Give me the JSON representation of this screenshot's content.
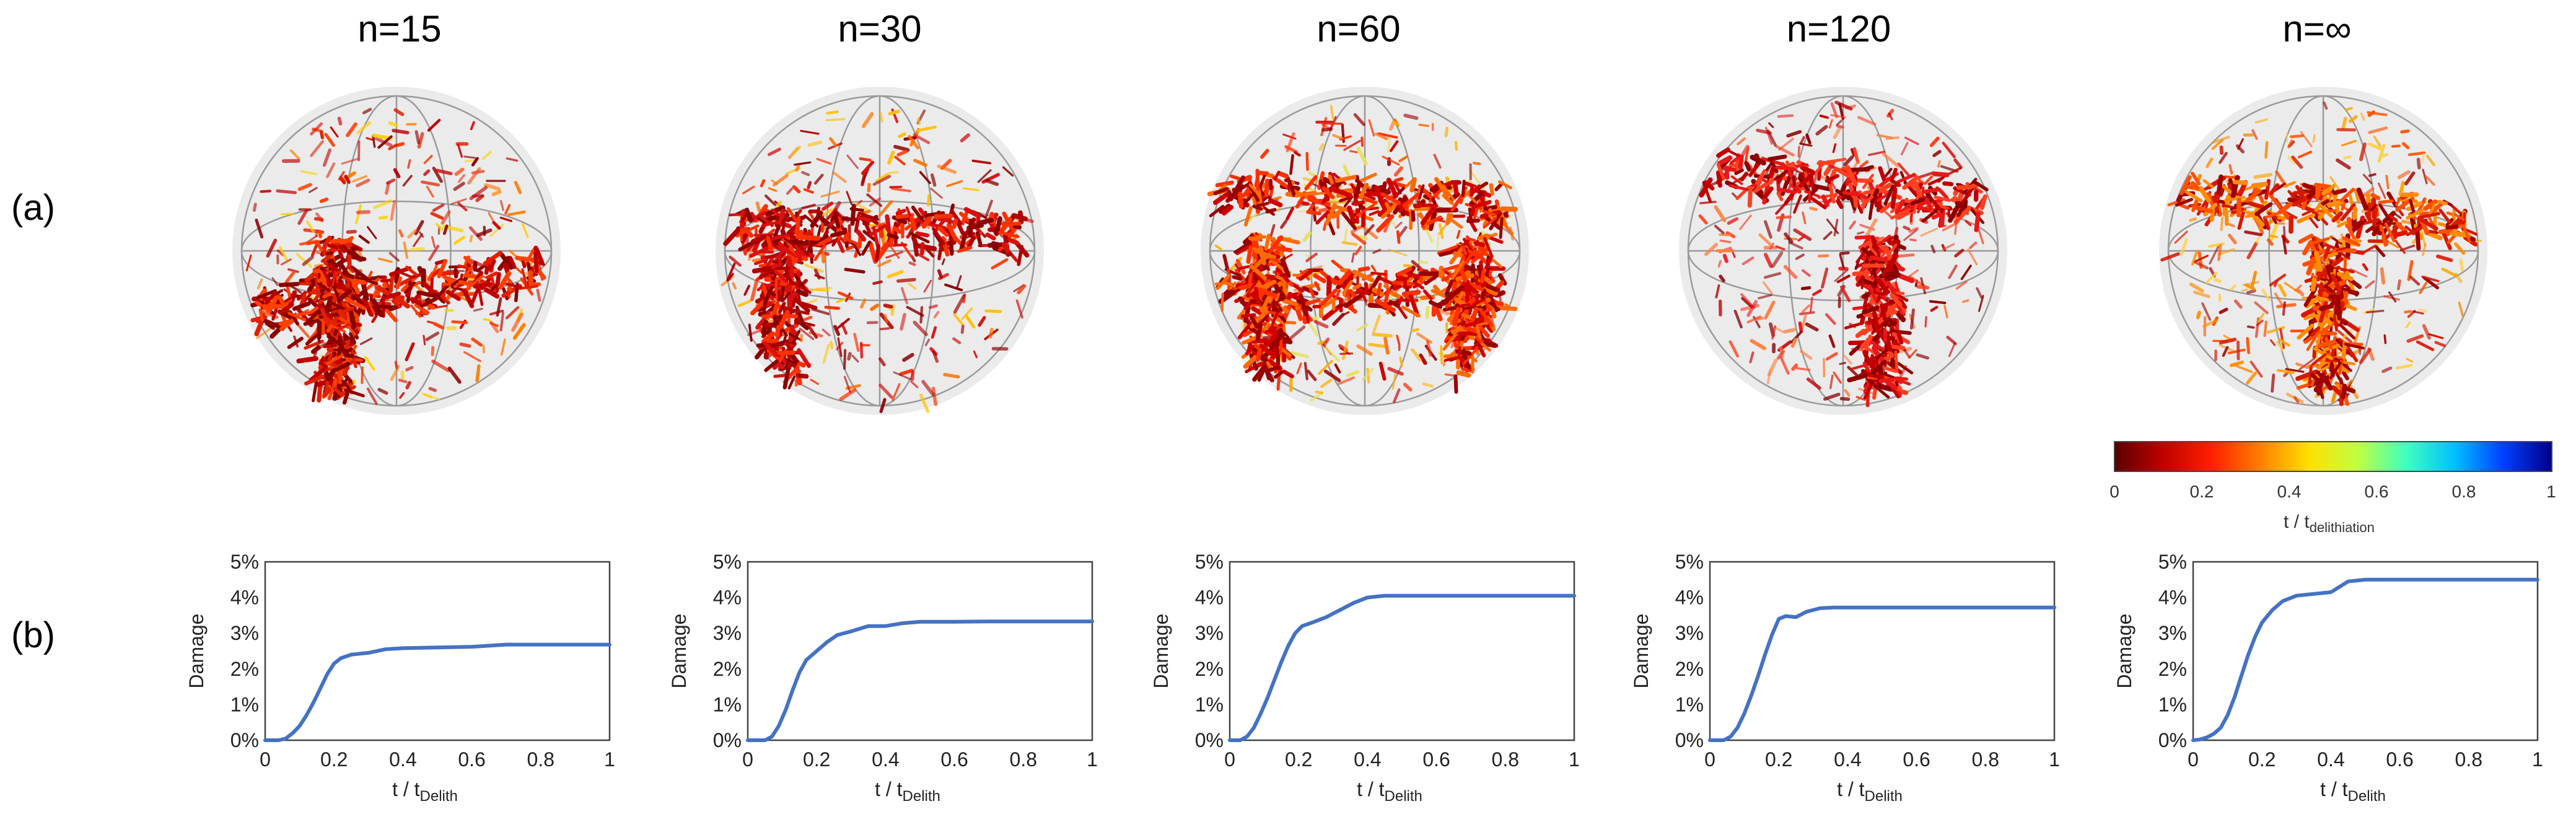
{
  "panel_labels": {
    "a": "(a)",
    "b": "(b)"
  },
  "columns": [
    {
      "title": "n=15"
    },
    {
      "title": "n=30"
    },
    {
      "title": "n=60"
    },
    {
      "title": "n=120"
    },
    {
      "title": "n=∞"
    }
  ],
  "colorbar": {
    "ticks": [
      "0",
      "0.2",
      "0.4",
      "0.6",
      "0.8",
      "1"
    ],
    "label_main": "t / t",
    "label_sub": "delithiation",
    "colors": [
      "#5a0000",
      "#c00000",
      "#ff2000",
      "#ff8000",
      "#ffe000",
      "#c0ff40",
      "#40ffc0",
      "#00c0ff",
      "#0040ff",
      "#00008a"
    ]
  },
  "line_color": "#4472c4",
  "chart_data": [
    {
      "type": "line",
      "title": "n=15",
      "xlabel_main": "t / t",
      "xlabel_sub": "Delith",
      "ylabel": "Damage",
      "xlim": [
        0,
        1
      ],
      "ylim": [
        0,
        5
      ],
      "xticks": [
        "0",
        "0.2",
        "0.4",
        "0.6",
        "0.8",
        "1"
      ],
      "yticks": [
        "0%",
        "1%",
        "2%",
        "3%",
        "4%",
        "5%"
      ],
      "x": [
        0,
        0.04,
        0.06,
        0.08,
        0.1,
        0.12,
        0.14,
        0.16,
        0.18,
        0.2,
        0.22,
        0.25,
        0.3,
        0.35,
        0.4,
        0.5,
        0.6,
        0.7,
        0.8,
        0.9,
        1.0
      ],
      "y": [
        0,
        0,
        0.05,
        0.2,
        0.4,
        0.7,
        1.05,
        1.45,
        1.85,
        2.15,
        2.3,
        2.4,
        2.45,
        2.55,
        2.58,
        2.6,
        2.62,
        2.68,
        2.68,
        2.68,
        2.68
      ]
    },
    {
      "type": "line",
      "title": "n=30",
      "xlabel_main": "t / t",
      "xlabel_sub": "Delith",
      "ylabel": "Damage",
      "xlim": [
        0,
        1
      ],
      "ylim": [
        0,
        5
      ],
      "xticks": [
        "0",
        "0.2",
        "0.4",
        "0.6",
        "0.8",
        "1"
      ],
      "yticks": [
        "0%",
        "1%",
        "2%",
        "3%",
        "4%",
        "5%"
      ],
      "x": [
        0,
        0.05,
        0.07,
        0.09,
        0.11,
        0.13,
        0.15,
        0.17,
        0.2,
        0.23,
        0.26,
        0.3,
        0.35,
        0.4,
        0.45,
        0.5,
        0.6,
        0.7,
        0.8,
        0.9,
        1.0
      ],
      "y": [
        0,
        0,
        0.1,
        0.4,
        0.85,
        1.4,
        1.9,
        2.25,
        2.5,
        2.75,
        2.95,
        3.05,
        3.2,
        3.2,
        3.28,
        3.32,
        3.32,
        3.33,
        3.33,
        3.33,
        3.33
      ]
    },
    {
      "type": "line",
      "title": "n=60",
      "xlabel_main": "t / t",
      "xlabel_sub": "Delith",
      "ylabel": "Damage",
      "xlim": [
        0,
        1
      ],
      "ylim": [
        0,
        5
      ],
      "xticks": [
        "0",
        "0.2",
        "0.4",
        "0.6",
        "0.8",
        "1"
      ],
      "yticks": [
        "0%",
        "1%",
        "2%",
        "3%",
        "4%",
        "5%"
      ],
      "x": [
        0,
        0.03,
        0.05,
        0.07,
        0.09,
        0.11,
        0.13,
        0.15,
        0.17,
        0.19,
        0.21,
        0.24,
        0.28,
        0.32,
        0.36,
        0.4,
        0.45,
        0.5,
        0.6,
        0.8,
        1.0
      ],
      "y": [
        0,
        0,
        0.1,
        0.35,
        0.75,
        1.2,
        1.7,
        2.2,
        2.65,
        3.0,
        3.2,
        3.3,
        3.45,
        3.65,
        3.85,
        4.0,
        4.05,
        4.05,
        4.05,
        4.05,
        4.05
      ]
    },
    {
      "type": "line",
      "title": "n=120",
      "xlabel_main": "t / t",
      "xlabel_sub": "Delith",
      "ylabel": "Damage",
      "xlim": [
        0,
        1
      ],
      "ylim": [
        0,
        5
      ],
      "xticks": [
        "0",
        "0.2",
        "0.4",
        "0.6",
        "0.8",
        "1"
      ],
      "yticks": [
        "0%",
        "1%",
        "2%",
        "3%",
        "4%",
        "5%"
      ],
      "x": [
        0,
        0.04,
        0.06,
        0.08,
        0.1,
        0.12,
        0.14,
        0.16,
        0.18,
        0.2,
        0.22,
        0.25,
        0.28,
        0.32,
        0.36,
        0.4,
        0.5,
        0.6,
        0.8,
        1.0
      ],
      "y": [
        0,
        0,
        0.1,
        0.35,
        0.75,
        1.25,
        1.8,
        2.4,
        2.95,
        3.4,
        3.48,
        3.45,
        3.6,
        3.7,
        3.72,
        3.72,
        3.72,
        3.72,
        3.72,
        3.72
      ]
    },
    {
      "type": "line",
      "title": "n=∞",
      "xlabel_main": "t / t",
      "xlabel_sub": "Delith",
      "ylabel": "Damage",
      "xlim": [
        0,
        1
      ],
      "ylim": [
        0,
        5
      ],
      "xticks": [
        "0",
        "0.2",
        "0.4",
        "0.6",
        "0.8",
        "1"
      ],
      "yticks": [
        "0%",
        "1%",
        "2%",
        "3%",
        "4%",
        "5%"
      ],
      "x": [
        0,
        0.02,
        0.04,
        0.06,
        0.08,
        0.1,
        0.12,
        0.14,
        0.16,
        0.18,
        0.2,
        0.23,
        0.26,
        0.3,
        0.35,
        0.4,
        0.45,
        0.5,
        0.6,
        0.8,
        1.0
      ],
      "y": [
        0,
        0.02,
        0.08,
        0.18,
        0.35,
        0.7,
        1.2,
        1.8,
        2.4,
        2.9,
        3.3,
        3.65,
        3.9,
        4.05,
        4.1,
        4.15,
        4.45,
        4.5,
        4.5,
        4.5,
        4.5
      ]
    }
  ]
}
